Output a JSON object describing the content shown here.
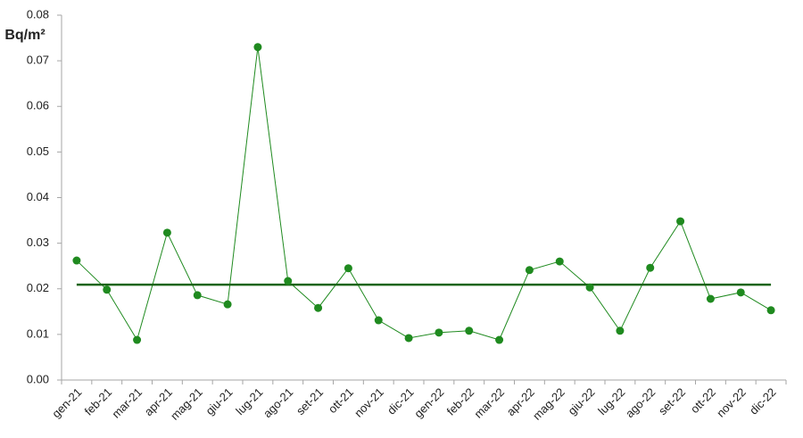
{
  "chart_data": {
    "type": "line",
    "y_label": "Bq/m²",
    "categories": [
      "gen-21",
      "feb-21",
      "mar-21",
      "apr-21",
      "mag-21",
      "giu-21",
      "lug-21",
      "ago-21",
      "set-21",
      "ott-21",
      "nov-21",
      "dic-21",
      "gen-22",
      "feb-22",
      "mar-22",
      "apr-22",
      "mag-22",
      "giu-22",
      "lug-22",
      "ago-22",
      "set-22",
      "ott-22",
      "nov-22",
      "dic-22"
    ],
    "values": [
      0.0262,
      0.0198,
      0.0088,
      0.0323,
      0.0186,
      0.0166,
      0.073,
      0.0217,
      0.0158,
      0.0245,
      0.0131,
      0.0092,
      0.0104,
      0.0108,
      0.0088,
      0.0241,
      0.026,
      0.0203,
      0.0108,
      0.0246,
      0.0348,
      0.0178,
      0.0192,
      0.0153
    ],
    "color": "#1f8a1f",
    "hline": {
      "value": 0.0209,
      "color": "#1a6414"
    },
    "ylim": [
      0,
      0.08
    ],
    "yticks": [
      {
        "value": 0,
        "label": "0.00"
      },
      {
        "value": 0.01,
        "label": "0.01"
      },
      {
        "value": 0.02,
        "label": "0.02"
      },
      {
        "value": 0.03,
        "label": "0.03"
      },
      {
        "value": 0.04,
        "label": "0.04"
      },
      {
        "value": 0.05,
        "label": "0.05"
      },
      {
        "value": 0.06,
        "label": "0.06"
      },
      {
        "value": 0.07,
        "label": "0.07"
      },
      {
        "value": 0.08,
        "label": "0.08"
      }
    ],
    "grid": false
  }
}
